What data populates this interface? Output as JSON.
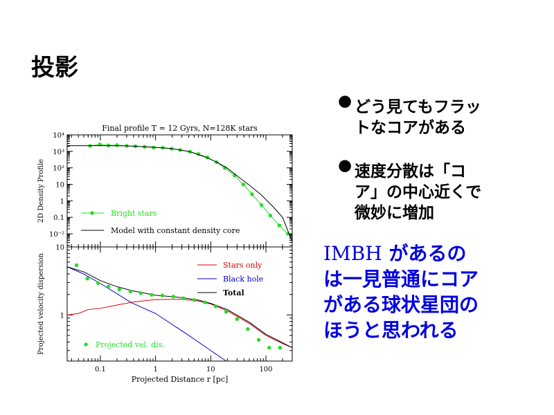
{
  "slide": {
    "title": "投影",
    "bullets": [
      {
        "lines": [
          "どう見てもフラッ",
          "トなコアがある"
        ]
      },
      {
        "lines": [
          "速度分散は「コ",
          "ア」の中心近くで",
          "微妙に増加"
        ]
      }
    ],
    "conclusion": {
      "first_line_latin": "IMBH",
      "first_line_rest": " があるの",
      "lines": [
        "は一見普通にコア",
        "がある球状星団の",
        "ほうと思われる"
      ]
    },
    "bullet_icon": "filled-circle",
    "conclusion_color": "#0000e0"
  },
  "chart_data": [
    {
      "type": "line",
      "title": "Final profile T = 12 Gyrs, N=128K stars",
      "xlabel": "",
      "ylabel": "2D Density Profile",
      "xscale": "log",
      "yscale": "log",
      "xlim": [
        0.025,
        300
      ],
      "ylim": [
        0.0016,
        10000
      ],
      "yticks": [
        {
          "v": 10000,
          "label": "10⁴"
        },
        {
          "v": 1000,
          "label": "10³"
        },
        {
          "v": 100,
          "label": "10²"
        },
        {
          "v": 10,
          "label": "10"
        },
        {
          "v": 1,
          "label": "1"
        },
        {
          "v": 0.1,
          "label": "0.1"
        },
        {
          "v": 0.01,
          "label": "10⁻²"
        }
      ],
      "legend_placement": "bottom-left",
      "series": [
        {
          "name": "Bright stars",
          "color": "#22dd22",
          "marker": "circle",
          "x": [
            0.065,
            0.098,
            0.14,
            0.2,
            0.3,
            0.43,
            0.63,
            0.92,
            1.35,
            1.95,
            2.8,
            4.2,
            6,
            8.7,
            12.7,
            18,
            27,
            39,
            56,
            83,
            120,
            175,
            250
          ],
          "y": [
            2140,
            2630,
            2290,
            2400,
            2140,
            2040,
            1900,
            1700,
            1660,
            1450,
            1200,
            955,
            690,
            430,
            220,
            98,
            35,
            9.8,
            2.5,
            0.55,
            0.13,
            0.032,
            0.01
          ]
        },
        {
          "name": "Model with constant density core",
          "color": "#000000",
          "marker": "none",
          "x": [
            0.025,
            0.1,
            0.3,
            1,
            2,
            4,
            8,
            13,
            20,
            30,
            50,
            80,
            130,
            200,
            300
          ],
          "y": [
            2200,
            2200,
            2150,
            1750,
            1450,
            1000,
            450,
            220,
            95,
            33,
            9,
            2.5,
            0.5,
            0.1,
            0.0033
          ]
        }
      ]
    },
    {
      "type": "line",
      "title": "",
      "xlabel": "Projected Distance r [pc]",
      "ylabel": "Projected velocity dispersion",
      "xscale": "log",
      "yscale": "log",
      "xlim": [
        0.025,
        300
      ],
      "ylim": [
        0.21,
        10
      ],
      "xticks": [
        {
          "v": 0.1,
          "label": "0.1"
        },
        {
          "v": 1,
          "label": "1"
        },
        {
          "v": 10,
          "label": "10"
        },
        {
          "v": 100,
          "label": "100"
        }
      ],
      "yticks": [
        {
          "v": 10,
          "label": "10"
        },
        {
          "v": 1,
          "label": "1"
        }
      ],
      "legend_placement": "top-right",
      "series": [
        {
          "name": "Stars only",
          "color": "#dd0000",
          "marker": "none",
          "x": [
            0.025,
            0.04,
            0.06,
            0.1,
            0.2,
            0.4,
            1,
            3,
            6,
            10,
            20,
            50,
            100,
            200,
            300
          ],
          "y": [
            1.0,
            1.05,
            1.2,
            1.25,
            1.4,
            1.55,
            1.68,
            1.7,
            1.6,
            1.45,
            1.15,
            0.75,
            0.5,
            0.38,
            0.33
          ]
        },
        {
          "name": "Black hole",
          "color": "#0000cc",
          "marker": "none",
          "x": [
            0.025,
            0.05,
            0.1,
            0.2,
            0.36,
            1,
            4,
            10,
            19
          ],
          "y": [
            5.1,
            4.0,
            2.9,
            2.05,
            1.52,
            1.05,
            0.5,
            0.3,
            0.21
          ]
        },
        {
          "name": "Total",
          "color": "#000000",
          "marker": "none",
          "x": [
            0.025,
            0.05,
            0.1,
            0.2,
            0.4,
            1,
            3,
            6,
            10,
            20,
            50,
            100,
            200,
            300
          ],
          "y": [
            5.1,
            4.3,
            3.2,
            2.6,
            2.25,
            1.95,
            1.8,
            1.65,
            1.48,
            1.2,
            0.78,
            0.52,
            0.39,
            0.33
          ]
        },
        {
          "name": "Projected vel. dis.",
          "color": "#22dd22",
          "marker": "circle",
          "x": [
            0.037,
            0.058,
            0.091,
            0.14,
            0.22,
            0.35,
            0.54,
            0.85,
            1.33,
            2.1,
            3.2,
            5,
            7.9,
            12.3,
            19,
            30,
            47,
            74,
            115,
            180
          ],
          "y": [
            5.4,
            3.42,
            2.94,
            2.62,
            2.37,
            2.22,
            2.09,
            1.98,
            1.93,
            1.86,
            1.76,
            1.66,
            1.53,
            1.34,
            1.11,
            0.87,
            0.62,
            0.43,
            0.33,
            0.33
          ]
        }
      ]
    }
  ]
}
